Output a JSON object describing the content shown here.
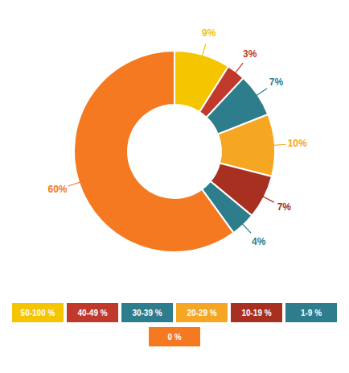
{
  "chart_data": {
    "type": "pie",
    "categories": [
      "50-100 %",
      "40-49 %",
      "30-39 %",
      "20-29 %",
      "10-19 %",
      "1-9 %",
      "0 %"
    ],
    "values": [
      9,
      3,
      7,
      10,
      7,
      4,
      60
    ],
    "value_labels": [
      "9%",
      "3%",
      "7%",
      "10%",
      "7%",
      "4%",
      "60%"
    ],
    "colors": [
      "#F5C500",
      "#C0392B",
      "#2E7D8C",
      "#F5A623",
      "#A83020",
      "#2E7D8C",
      "#F47920"
    ],
    "data_labels": true,
    "legend": "bottom"
  }
}
